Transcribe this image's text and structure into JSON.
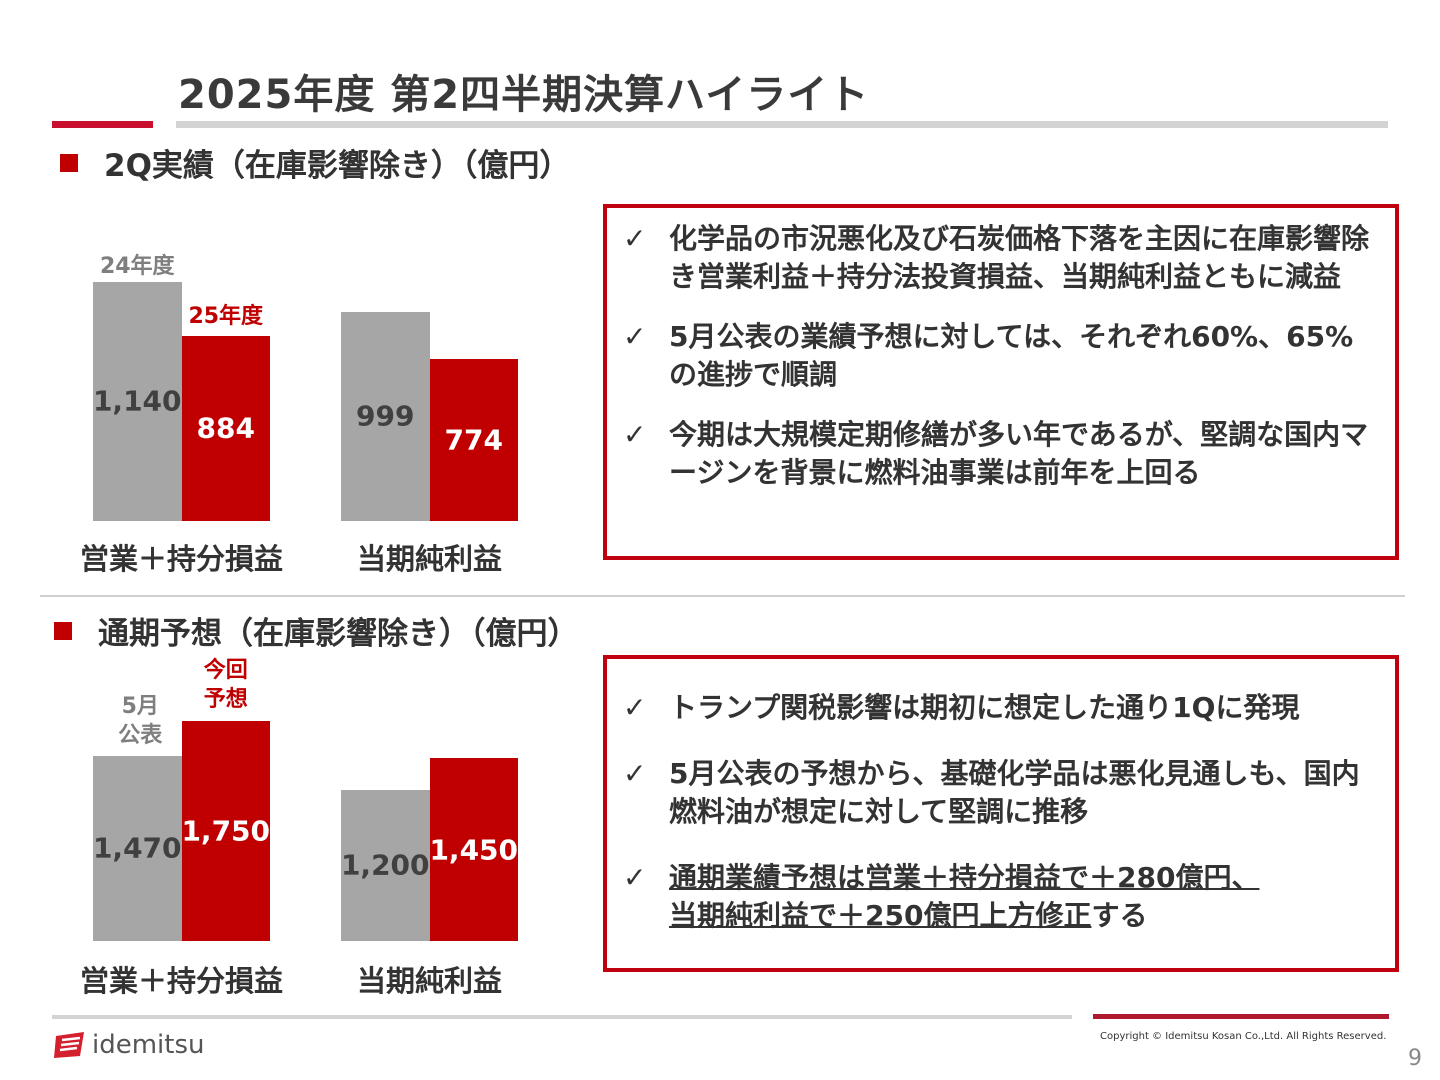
{
  "title": "2025年度 第2四半期決算ハイライト",
  "section1": {
    "heading": "2Q実績（在庫影響除き）（億円）",
    "bullets": [
      {
        "check": "✓",
        "text": "化学品の市況悪化及び石炭価格下落を主因に在庫影響除き営業利益＋持分法投資損益、当期純利益ともに減益"
      },
      {
        "check": "✓",
        "text": "5月公表の業績予想に対しては、それぞれ60%、65%の進捗で順調"
      },
      {
        "check": "✓",
        "text": "今期は大規模定期修繕が多い年であるが、堅調な国内マージンを背景に燃料油事業は前年を上回る"
      }
    ]
  },
  "section2": {
    "heading": "通期予想（在庫影響除き）（億円）",
    "bullets": [
      {
        "check": "✓",
        "text": "トランプ関税影響は期初に想定した通り1Qに発現"
      },
      {
        "check": "✓",
        "text": "5月公表の予想から、基礎化学品は悪化見通しも、国内燃料油が想定に対して堅調に推移"
      },
      {
        "check": "✓",
        "text_underlined_1": "通期業績予想は営業＋持分損益で＋280億円、",
        "text_underlined_2": "当期純利益で＋250億円上方修正",
        "text_tail": "する"
      }
    ]
  },
  "chart_data": [
    {
      "type": "bar",
      "title": "2Q実績（在庫影響除き）（億円）",
      "categories": [
        "営業＋持分損益",
        "当期純利益"
      ],
      "series": [
        {
          "name": "24年度",
          "values": [
            1140,
            999
          ],
          "labels": [
            "1,140",
            "999"
          ],
          "color": "#a6a6a6"
        },
        {
          "name": "25年度",
          "values": [
            884,
            774
          ],
          "labels": [
            "884",
            "774"
          ],
          "color": "#c00000"
        }
      ],
      "grid": false
    },
    {
      "type": "bar",
      "title": "通期予想（在庫影響除き）（億円）",
      "categories": [
        "営業＋持分損益",
        "当期純利益"
      ],
      "series": [
        {
          "name": "5月公表",
          "name_lines": [
            "5月",
            "公表"
          ],
          "values": [
            1470,
            1200
          ],
          "labels": [
            "1,470",
            "1,200"
          ],
          "color": "#a6a6a6"
        },
        {
          "name": "今回予想",
          "name_lines": [
            "今回",
            "予想"
          ],
          "values": [
            1750,
            1450
          ],
          "labels": [
            "1,750",
            "1,450"
          ],
          "color": "#c00000"
        }
      ],
      "grid": false
    }
  ],
  "footer": {
    "logo_text": "idemitsu",
    "copyright": "Copyright © Idemitsu Kosan Co.,Ltd.  All Rights Reserved.",
    "page_number": "9"
  },
  "colors": {
    "accent": "#c00000",
    "gray_bar": "#a6a6a6"
  }
}
